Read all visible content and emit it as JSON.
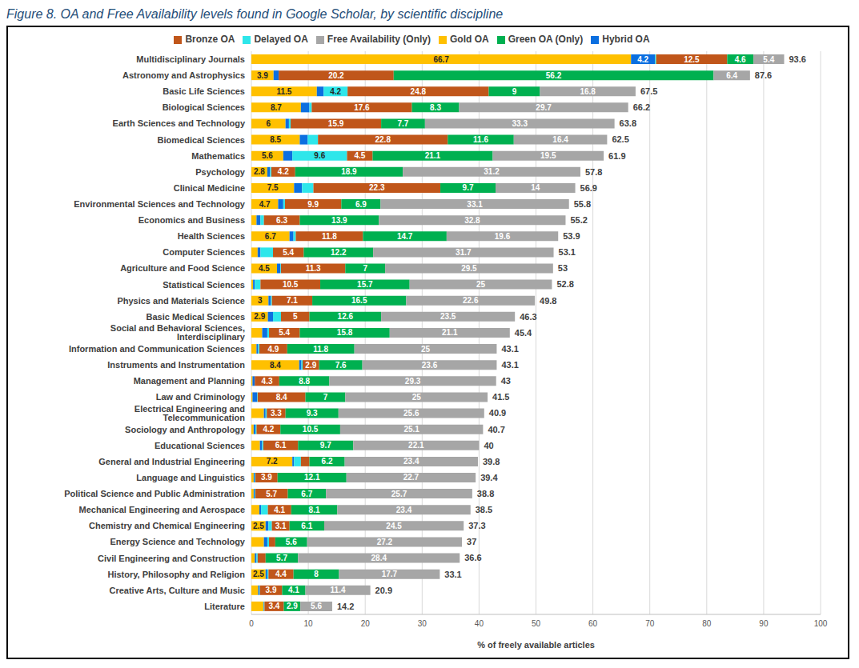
{
  "chart_data": {
    "type": "bar",
    "title": "Figure 8. OA and Free Availability levels found in Google Scholar, by scientific discipline",
    "orientation": "horizontal",
    "stacked": true,
    "data_labels": true,
    "grid": true,
    "legend": "top",
    "xlabel": "% of freely available articles",
    "xlim": [
      0,
      100
    ],
    "xticks": [
      0,
      10,
      20,
      30,
      40,
      50,
      60,
      70,
      80,
      90,
      100
    ],
    "categories": [
      "Multidisciplinary Journals",
      "Astronomy and Astrophysics",
      "Basic Life Sciences",
      "Biological Sciences",
      "Earth Sciences and Technology",
      "Biomedical Sciences",
      "Mathematics",
      "Psychology",
      "Clinical Medicine",
      "Environmental Sciences and Technology",
      "Economics and Business",
      "Health Sciences",
      "Computer Sciences",
      "Agriculture and Food Science",
      "Statistical Sciences",
      "Physics and Materials Science",
      "Basic Medical Sciences",
      "Social and Behavioral Sciences, Interdisciplinary",
      "Information and Communication Sciences",
      "Instruments and Instrumentation",
      "Management and Planning",
      "Law and Criminology",
      "Electrical Engineering and Telecommunication",
      "Sociology and Anthropology",
      "Educational Sciences",
      "General and Industrial Engineering",
      "Language and Linguistics",
      "Political Science and Public Administration",
      "Mechanical Engineering and Aerospace",
      "Chemistry and Chemical Engineering",
      "Energy Science and Technology",
      "Civil Engineering and Construction",
      "History, Philosophy and Religion",
      "Creative Arts, Culture and Music",
      "Literature"
    ],
    "series": [
      {
        "name": "Gold OA",
        "color": "#FFC000",
        "values": [
          66.7,
          3.9,
          11.5,
          8.7,
          6,
          8.5,
          5.6,
          2.8,
          7.5,
          4.7,
          0.9,
          6.7,
          1.1,
          4.5,
          0.3,
          3.0,
          2.9,
          1.9,
          0.9,
          8.4,
          0.2,
          0.2,
          2.2,
          0.4,
          1.5,
          7.2,
          0.4,
          0.4,
          1.4,
          2.5,
          2.2,
          0.6,
          2.5,
          1.2,
          2.1
        ]
      },
      {
        "name": "Hybrid OA",
        "color": "#0B6FE0",
        "values": [
          4.2,
          0.9,
          1.2,
          1.5,
          0.6,
          1.4,
          1.6,
          0.5,
          1.4,
          0.9,
          0.7,
          0.7,
          0.5,
          0.6,
          0.3,
          0.4,
          0.9,
          0.9,
          0.3,
          0.4,
          0.4,
          0.8,
          0.3,
          0.3,
          0.4,
          0.3,
          0.2,
          0.2,
          0.3,
          0.5,
          0.6,
          0.3,
          0.3,
          0.2,
          0.1
        ]
      },
      {
        "name": "Delayed OA",
        "color": "#2EE6EA",
        "values": [
          0.2,
          0,
          4.2,
          0.4,
          0.3,
          1.8,
          9.6,
          0.2,
          2.0,
          0.3,
          0.6,
          0.4,
          2.2,
          0.1,
          1.0,
          0.2,
          1.4,
          0.3,
          0.2,
          0.2,
          0,
          0.1,
          0.2,
          0.2,
          0.2,
          1.2,
          0.1,
          0.1,
          1.2,
          0.6,
          0.3,
          0.2,
          0.2,
          0.1,
          0.1
        ]
      },
      {
        "name": "Bronze OA",
        "color": "#C0561A",
        "values": [
          12.5,
          20.2,
          24.8,
          17.6,
          15.9,
          22.8,
          4.5,
          4.2,
          22.3,
          9.9,
          6.3,
          11.8,
          5.4,
          11.3,
          10.5,
          7.1,
          5,
          5.4,
          4.9,
          2.9,
          4.3,
          8.4,
          3.3,
          4.2,
          6.1,
          1.5,
          3.9,
          5.7,
          4.1,
          3.1,
          1.1,
          1.4,
          4.4,
          3.9,
          3.4
        ]
      },
      {
        "name": "Green OA (Only)",
        "color": "#00B050",
        "values": [
          4.6,
          56.2,
          9,
          8.3,
          7.7,
          11.6,
          21.1,
          18.9,
          9.7,
          6.9,
          13.9,
          14.7,
          12.2,
          7,
          15.7,
          16.5,
          12.6,
          15.8,
          11.8,
          7.6,
          8.8,
          7,
          9.3,
          10.5,
          9.7,
          6.2,
          12.1,
          6.7,
          8.1,
          6.1,
          5.6,
          5.7,
          8,
          4.1,
          2.9
        ]
      },
      {
        "name": "Free Availability (Only)",
        "color": "#A6A6A6",
        "values": [
          5.4,
          6.4,
          16.8,
          29.7,
          33.3,
          16.4,
          19.5,
          31.2,
          14,
          33.1,
          32.8,
          19.6,
          31.7,
          29.5,
          25,
          22.6,
          23.5,
          21.1,
          25,
          23.6,
          29.3,
          25,
          25.6,
          25.1,
          22.1,
          23.4,
          22.7,
          25.7,
          23.4,
          24.5,
          27.2,
          28.4,
          17.7,
          11.4,
          5.6
        ]
      }
    ],
    "totals": [
      93.6,
      87.6,
      67.5,
      66.2,
      63.8,
      62.5,
      61.9,
      57.8,
      56.9,
      55.8,
      55.2,
      53.9,
      53.1,
      53,
      52.8,
      49.8,
      46.3,
      45.4,
      43.1,
      43.1,
      43,
      41.5,
      40.9,
      40.7,
      40,
      39.8,
      39.4,
      38.8,
      38.5,
      37.3,
      37,
      36.6,
      33.1,
      20.9,
      14.2
    ]
  }
}
